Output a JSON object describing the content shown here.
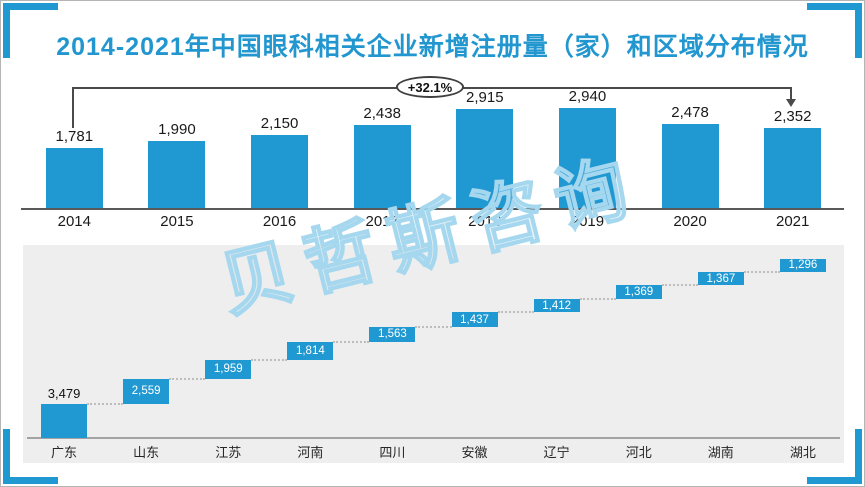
{
  "page": {
    "title": "2014-2021年中国眼科相关企业新增注册量（家）和区域分布情况",
    "watermark": "贝哲斯咨询"
  },
  "colors": {
    "primary_blue": "#2098d1",
    "title_blue": "#2196cf",
    "panel_bg": "#eeeeee",
    "axis_dark": "#595959",
    "axis_light": "#a3a3a3",
    "watermark_blue": "#a5d7ee"
  },
  "chart_data": [
    {
      "type": "bar",
      "categories": [
        "2014",
        "2015",
        "2016",
        "2017",
        "2018",
        "2019",
        "2020",
        "2021"
      ],
      "values": [
        1781,
        1990,
        2150,
        2438,
        2915,
        2940,
        2478,
        2352
      ],
      "labels": [
        "1,781",
        "1,990",
        "2,150",
        "2,438",
        "2,915",
        "2,940",
        "2,478",
        "2,352"
      ],
      "annotation": {
        "label": "+32.1%",
        "from": "2014",
        "to": "2021"
      },
      "bar_color": "#2098d1",
      "grid": false,
      "ylim": [
        0,
        3100
      ],
      "xlabel": "",
      "ylabel": ""
    },
    {
      "type": "bar",
      "style": "waterfall-cumulative",
      "categories": [
        "广东",
        "山东",
        "江苏",
        "河南",
        "四川",
        "安徽",
        "辽宁",
        "河北",
        "湖南",
        "湖北"
      ],
      "values": [
        3479,
        2559,
        1959,
        1814,
        1563,
        1437,
        1412,
        1369,
        1367,
        1296
      ],
      "labels": [
        "3,479",
        "2,559",
        "1,959",
        "1,814",
        "1,563",
        "1,437",
        "1,412",
        "1,369",
        "1,367",
        "1,296"
      ],
      "cumulative_max": 18255,
      "bar_color": "#2098d1",
      "grid": false,
      "xlabel": "",
      "ylabel": ""
    }
  ]
}
